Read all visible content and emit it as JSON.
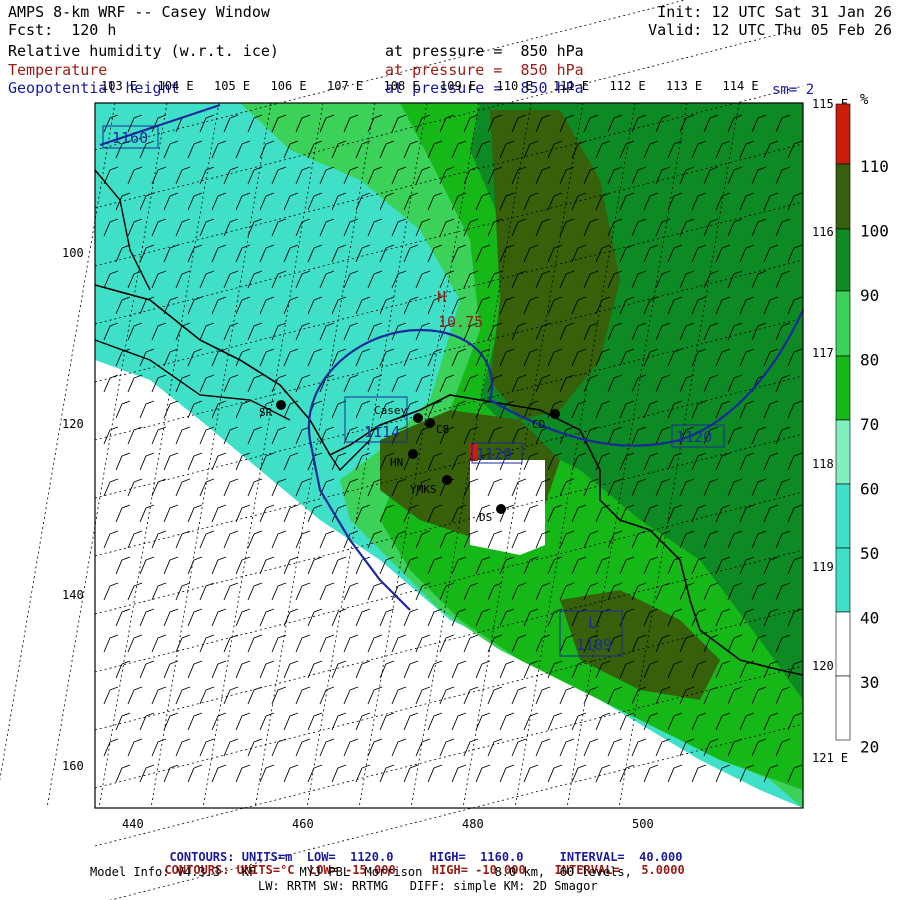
{
  "header": {
    "title_left": "AMPS 8-km WRF -- Casey Window",
    "forecast": "Fcst:  120 h",
    "init": "Init: 12 UTC Sat 31 Jan 26",
    "valid": "Valid: 12 UTC Thu 05 Feb 26",
    "field_rh": "Relative humidity (w.r.t. ice)",
    "field_rh_level": "at pressure =  850 hPa",
    "field_temp": "Temperature",
    "field_temp_level": "at pressure =  850 hPa",
    "field_geo": "Geopotential height",
    "field_geo_level": "at pressure =  850 hPa"
  },
  "colors": {
    "rh_scale": [
      "#ffffff",
      "#ffffff",
      "#40e0c8",
      "#80f0c0",
      "#3cd25a",
      "#16b818",
      "#0e8a24",
      "#36600a",
      "#c81e0a"
    ],
    "geopotential_contour": "#1a2a9a",
    "temperature_contour": "#9a1a14",
    "coastline": "#000000"
  },
  "map": {
    "smoothing_label": "sm= 2",
    "longitude_labels": [
      "103 E",
      "104 E",
      "105 E",
      "106 E",
      "107 E",
      "108 E",
      "109 E",
      "110 E",
      "111 E",
      "112 E",
      "113 E",
      "114 E"
    ],
    "latitude_right_labels": [
      "115 E",
      "116 E",
      "117 E",
      "118 E",
      "119 E",
      "120 E",
      "121 E"
    ],
    "grid_x_labels": [
      "440",
      "460",
      "480",
      "500"
    ],
    "grid_y_labels": [
      "100",
      "120",
      "140",
      "160"
    ],
    "stations": [
      {
        "name": "SR"
      },
      {
        "name": "Casey"
      },
      {
        "name": "C8"
      },
      {
        "name": "HN"
      },
      {
        "name": "YMKS"
      },
      {
        "name": "DS"
      },
      {
        "name": "CD"
      }
    ],
    "pressure_centers": [
      {
        "type": "H",
        "value": "10.75"
      },
      {
        "type": "L",
        "value": "1109"
      }
    ],
    "contour_labels": [
      "1160",
      "1114",
      "1120",
      "1120"
    ]
  },
  "colorbar": {
    "unit": "%",
    "labels": [
      "110",
      "100",
      "90",
      "80",
      "70",
      "60",
      "50",
      "40",
      "30",
      "20"
    ]
  },
  "footer": {
    "contours_geo_label": "CONTOURS:",
    "contours_geo_units": "UNITS=m",
    "contours_geo_low": "LOW=  1120.0",
    "contours_geo_high": "HIGH=  1160.0",
    "contours_geo_interval": "INTERVAL=  40.000",
    "contours_temp_label": "CONTOURS:",
    "contours_temp_units": "UNITS=°C",
    "contours_temp_low": "LOW= -15.000",
    "contours_temp_high": "HIGH= -10.000",
    "contours_temp_interval": "INTERVAL=   5.0000",
    "model_info": "Model Info: V4.3.3   KF      MYJ PBL  Morrison          8.0 km,  60 levels,",
    "physics": "LW: RRTM SW: RRTMG   DIFF: simple KM: 2D Smagor"
  }
}
